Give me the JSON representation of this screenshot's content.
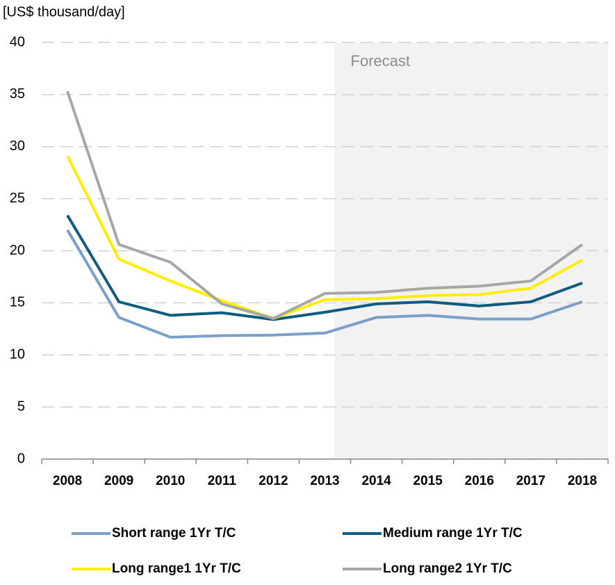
{
  "chart_data": {
    "type": "line",
    "y_axis_label": "[US$ thousand/day]",
    "annotation": "Forecast",
    "categories": [
      "2008",
      "2009",
      "2010",
      "2011",
      "2012",
      "2013",
      "2014",
      "2015",
      "2016",
      "2017",
      "2018"
    ],
    "series": [
      {
        "name": "Short range 1Yr T/C",
        "color": "#7aa0c8",
        "values": [
          22.0,
          13.6,
          11.7,
          11.85,
          11.9,
          12.1,
          13.6,
          13.8,
          13.45,
          13.45,
          15.1
        ]
      },
      {
        "name": "Medium range 1Yr T/C",
        "color": "#0e5c80",
        "values": [
          23.4,
          15.1,
          13.8,
          14.05,
          13.4,
          14.1,
          14.9,
          15.1,
          14.7,
          15.1,
          16.9
        ]
      },
      {
        "name": "Long range1 1Yr T/C",
        "color": "#ffee00",
        "values": [
          29.1,
          19.2,
          17.1,
          15.2,
          13.5,
          15.3,
          15.4,
          15.7,
          15.8,
          16.4,
          19.1
        ]
      },
      {
        "name": "Long range2 1Yr T/C",
        "color": "#a6a6a6",
        "values": [
          35.3,
          20.6,
          18.9,
          14.9,
          13.5,
          15.9,
          16.0,
          16.4,
          16.6,
          17.1,
          20.6
        ]
      }
    ],
    "ylim": [
      0,
      40
    ],
    "yticks": [
      0,
      5,
      10,
      15,
      20,
      25,
      30,
      35,
      40
    ],
    "grid": true
  }
}
